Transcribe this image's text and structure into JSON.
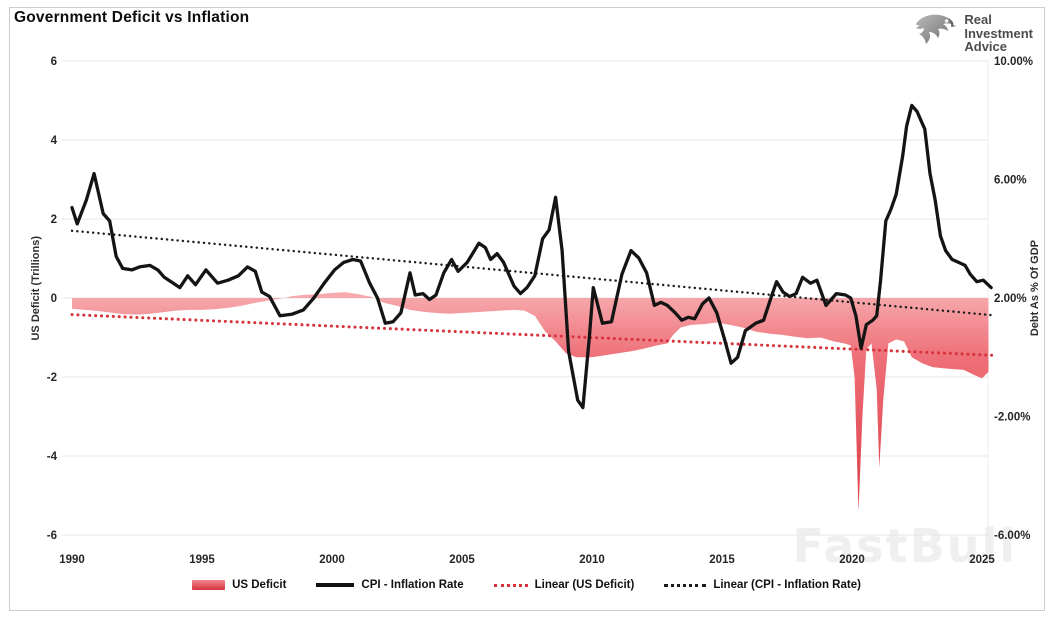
{
  "title": "Government Deficit vs Inflation",
  "watermark": "FastBull",
  "logo": {
    "lines": [
      "Real",
      "Investment",
      "Advice"
    ]
  },
  "legend": {
    "items": [
      {
        "label": "US Deficit",
        "swatch": "area"
      },
      {
        "label": "CPI - Inflation Rate",
        "swatch": "line"
      },
      {
        "label": "Linear (US Deficit)",
        "swatch": "dotted-red"
      },
      {
        "label": "Linear (CPI - Inflation Rate)",
        "swatch": "dotted-black"
      }
    ]
  },
  "colors": {
    "area_top": "#f8b3b6",
    "area_mid": "#ee7078",
    "area_bottom": "#d8333d",
    "cpi_line": "#141414",
    "trend_deficit": "#d8333d",
    "trend_cpi": "#1b1b1b",
    "gridline": "#e5e5e5",
    "tick_text": "#262626"
  },
  "chart_data": {
    "type": "combo-area-line",
    "title": "Government Deficit vs Inflation",
    "grid": "horizontal",
    "legend_position": "bottom",
    "x_axis": {
      "min": 1990,
      "max": 2025.5,
      "ticks": [
        1990,
        1995,
        2000,
        2005,
        2010,
        2015,
        2020,
        2025
      ]
    },
    "left_axis": {
      "title": "US Deficit (Trillions)",
      "min": -6,
      "max": 6,
      "tick_labels": [
        "6",
        "4",
        "2",
        "0",
        "-2",
        "-4",
        "-6"
      ],
      "tick_values": [
        6,
        4,
        2,
        0,
        -2,
        -4,
        -6
      ]
    },
    "right_axis": {
      "title": "Debt As % Of GDP",
      "min": -6,
      "max": 10,
      "tick_labels": [
        "10.00%",
        "6.00%",
        "2.00%",
        "-2.00%",
        "-6.00%"
      ],
      "tick_values": [
        10,
        6,
        2,
        -2,
        -6
      ]
    },
    "series": [
      {
        "name": "US Deficit",
        "type": "area",
        "axis": "left",
        "points": [
          [
            1990.0,
            -0.27
          ],
          [
            1990.5,
            -0.3
          ],
          [
            1991.0,
            -0.33
          ],
          [
            1991.5,
            -0.37
          ],
          [
            1992.0,
            -0.41
          ],
          [
            1992.5,
            -0.42
          ],
          [
            1993.0,
            -0.4
          ],
          [
            1993.5,
            -0.36
          ],
          [
            1994.0,
            -0.32
          ],
          [
            1994.5,
            -0.3
          ],
          [
            1995.0,
            -0.3
          ],
          [
            1995.5,
            -0.28
          ],
          [
            1996.0,
            -0.25
          ],
          [
            1996.5,
            -0.2
          ],
          [
            1997.0,
            -0.13
          ],
          [
            1997.5,
            -0.07
          ],
          [
            1998.0,
            -0.02
          ],
          [
            1998.5,
            0.05
          ],
          [
            1999.0,
            0.08
          ],
          [
            1999.5,
            0.1
          ],
          [
            2000.0,
            0.13
          ],
          [
            2000.5,
            0.15
          ],
          [
            2001.0,
            0.1
          ],
          [
            2001.5,
            0.03
          ],
          [
            2002.0,
            -0.12
          ],
          [
            2002.5,
            -0.2
          ],
          [
            2003.0,
            -0.3
          ],
          [
            2003.5,
            -0.35
          ],
          [
            2004.0,
            -0.38
          ],
          [
            2004.5,
            -0.4
          ],
          [
            2005.0,
            -0.38
          ],
          [
            2005.5,
            -0.36
          ],
          [
            2006.0,
            -0.34
          ],
          [
            2006.5,
            -0.32
          ],
          [
            2007.0,
            -0.3
          ],
          [
            2007.4,
            -0.32
          ],
          [
            2007.8,
            -0.45
          ],
          [
            2008.2,
            -0.85
          ],
          [
            2008.6,
            -1.1
          ],
          [
            2009.0,
            -1.4
          ],
          [
            2009.4,
            -1.5
          ],
          [
            2010.0,
            -1.5
          ],
          [
            2010.5,
            -1.45
          ],
          [
            2011.0,
            -1.4
          ],
          [
            2011.5,
            -1.35
          ],
          [
            2012.0,
            -1.28
          ],
          [
            2012.5,
            -1.2
          ],
          [
            2012.9,
            -1.15
          ],
          [
            2013.1,
            -0.95
          ],
          [
            2013.4,
            -0.75
          ],
          [
            2013.8,
            -0.68
          ],
          [
            2014.3,
            -0.66
          ],
          [
            2014.8,
            -0.62
          ],
          [
            2015.3,
            -0.68
          ],
          [
            2015.8,
            -0.75
          ],
          [
            2016.3,
            -0.85
          ],
          [
            2016.8,
            -0.9
          ],
          [
            2017.3,
            -0.93
          ],
          [
            2017.8,
            -0.98
          ],
          [
            2018.3,
            -1.02
          ],
          [
            2018.8,
            -1.0
          ],
          [
            2019.3,
            -1.1
          ],
          [
            2019.7,
            -1.15
          ],
          [
            2019.95,
            -1.2
          ],
          [
            2020.1,
            -2.0
          ],
          [
            2020.25,
            -5.4
          ],
          [
            2020.4,
            -3.0
          ],
          [
            2020.55,
            -1.3
          ],
          [
            2020.75,
            -1.15
          ],
          [
            2020.95,
            -2.3
          ],
          [
            2021.05,
            -4.3
          ],
          [
            2021.2,
            -2.6
          ],
          [
            2021.4,
            -1.15
          ],
          [
            2021.7,
            -1.05
          ],
          [
            2022.0,
            -1.1
          ],
          [
            2022.3,
            -1.5
          ],
          [
            2022.7,
            -1.65
          ],
          [
            2023.1,
            -1.75
          ],
          [
            2023.5,
            -1.78
          ],
          [
            2023.9,
            -1.8
          ],
          [
            2024.3,
            -1.82
          ],
          [
            2024.7,
            -1.95
          ],
          [
            2025.0,
            -2.03
          ],
          [
            2025.25,
            -1.87
          ]
        ]
      },
      {
        "name": "CPI - Inflation Rate",
        "type": "line",
        "axis": "right",
        "points": [
          [
            1990.0,
            5.05
          ],
          [
            1990.2,
            4.5
          ],
          [
            1990.55,
            5.3
          ],
          [
            1990.85,
            6.2
          ],
          [
            1991.2,
            4.85
          ],
          [
            1991.45,
            4.6
          ],
          [
            1991.7,
            3.4
          ],
          [
            1991.95,
            3.0
          ],
          [
            1992.3,
            2.95
          ],
          [
            1992.6,
            3.05
          ],
          [
            1993.0,
            3.1
          ],
          [
            1993.3,
            2.95
          ],
          [
            1993.55,
            2.7
          ],
          [
            1994.15,
            2.35
          ],
          [
            1994.45,
            2.75
          ],
          [
            1994.75,
            2.45
          ],
          [
            1995.15,
            2.95
          ],
          [
            1995.6,
            2.5
          ],
          [
            1996.0,
            2.6
          ],
          [
            1996.4,
            2.75
          ],
          [
            1996.75,
            3.05
          ],
          [
            1997.05,
            2.9
          ],
          [
            1997.3,
            2.2
          ],
          [
            1997.6,
            2.05
          ],
          [
            1998.0,
            1.4
          ],
          [
            1998.45,
            1.45
          ],
          [
            1998.9,
            1.6
          ],
          [
            1999.3,
            2.0
          ],
          [
            1999.7,
            2.5
          ],
          [
            2000.1,
            2.95
          ],
          [
            2000.45,
            3.2
          ],
          [
            2000.8,
            3.3
          ],
          [
            2001.1,
            3.25
          ],
          [
            2001.45,
            2.5
          ],
          [
            2001.75,
            2.0
          ],
          [
            2002.05,
            1.15
          ],
          [
            2002.35,
            1.2
          ],
          [
            2002.65,
            1.5
          ],
          [
            2003.0,
            2.85
          ],
          [
            2003.2,
            2.1
          ],
          [
            2003.5,
            2.15
          ],
          [
            2003.75,
            1.95
          ],
          [
            2004.0,
            2.1
          ],
          [
            2004.3,
            2.85
          ],
          [
            2004.6,
            3.3
          ],
          [
            2004.85,
            2.9
          ],
          [
            2005.2,
            3.2
          ],
          [
            2005.65,
            3.85
          ],
          [
            2005.9,
            3.7
          ],
          [
            2006.1,
            3.3
          ],
          [
            2006.35,
            3.5
          ],
          [
            2006.6,
            3.2
          ],
          [
            2007.0,
            2.4
          ],
          [
            2007.25,
            2.15
          ],
          [
            2007.5,
            2.35
          ],
          [
            2007.8,
            2.75
          ],
          [
            2008.1,
            4.0
          ],
          [
            2008.35,
            4.3
          ],
          [
            2008.6,
            5.4
          ],
          [
            2008.85,
            3.6
          ],
          [
            2009.1,
            0.2
          ],
          [
            2009.45,
            -1.45
          ],
          [
            2009.65,
            -1.7
          ],
          [
            2009.9,
            0.7
          ],
          [
            2010.05,
            2.35
          ],
          [
            2010.4,
            1.15
          ],
          [
            2010.75,
            1.2
          ],
          [
            2011.15,
            2.8
          ],
          [
            2011.5,
            3.6
          ],
          [
            2011.8,
            3.35
          ],
          [
            2012.1,
            2.85
          ],
          [
            2012.4,
            1.75
          ],
          [
            2012.65,
            1.85
          ],
          [
            2012.9,
            1.75
          ],
          [
            2013.2,
            1.5
          ],
          [
            2013.45,
            1.25
          ],
          [
            2013.7,
            1.35
          ],
          [
            2013.95,
            1.3
          ],
          [
            2014.25,
            1.8
          ],
          [
            2014.5,
            2.0
          ],
          [
            2014.8,
            1.5
          ],
          [
            2015.1,
            0.6
          ],
          [
            2015.35,
            -0.2
          ],
          [
            2015.6,
            0.0
          ],
          [
            2015.9,
            0.9
          ],
          [
            2016.3,
            1.15
          ],
          [
            2016.6,
            1.25
          ],
          [
            2016.9,
            2.05
          ],
          [
            2017.1,
            2.55
          ],
          [
            2017.35,
            2.2
          ],
          [
            2017.6,
            2.05
          ],
          [
            2017.85,
            2.15
          ],
          [
            2018.1,
            2.7
          ],
          [
            2018.4,
            2.5
          ],
          [
            2018.65,
            2.6
          ],
          [
            2019.0,
            1.75
          ],
          [
            2019.4,
            2.15
          ],
          [
            2019.75,
            2.1
          ],
          [
            2019.95,
            2.0
          ],
          [
            2020.15,
            1.4
          ],
          [
            2020.35,
            0.3
          ],
          [
            2020.55,
            1.1
          ],
          [
            2020.8,
            1.25
          ],
          [
            2020.95,
            1.4
          ],
          [
            2021.1,
            2.6
          ],
          [
            2021.3,
            4.6
          ],
          [
            2021.5,
            5.0
          ],
          [
            2021.7,
            5.5
          ],
          [
            2021.95,
            6.8
          ],
          [
            2022.1,
            7.8
          ],
          [
            2022.3,
            8.5
          ],
          [
            2022.5,
            8.3
          ],
          [
            2022.65,
            8.0
          ],
          [
            2022.8,
            7.7
          ],
          [
            2023.0,
            6.2
          ],
          [
            2023.2,
            5.3
          ],
          [
            2023.4,
            4.1
          ],
          [
            2023.6,
            3.6
          ],
          [
            2023.85,
            3.3
          ],
          [
            2024.1,
            3.2
          ],
          [
            2024.35,
            3.1
          ],
          [
            2024.55,
            2.8
          ],
          [
            2024.8,
            2.55
          ],
          [
            2025.05,
            2.6
          ],
          [
            2025.35,
            2.35
          ]
        ]
      },
      {
        "name": "Linear (US Deficit)",
        "type": "trendline-dotted",
        "axis": "left",
        "points": [
          [
            1990.0,
            -0.42
          ],
          [
            2025.4,
            -1.45
          ]
        ]
      },
      {
        "name": "Linear (CPI - Inflation Rate)",
        "type": "trendline-dotted",
        "axis": "right",
        "points": [
          [
            1990.0,
            4.27
          ],
          [
            2025.4,
            1.42
          ]
        ]
      }
    ]
  }
}
